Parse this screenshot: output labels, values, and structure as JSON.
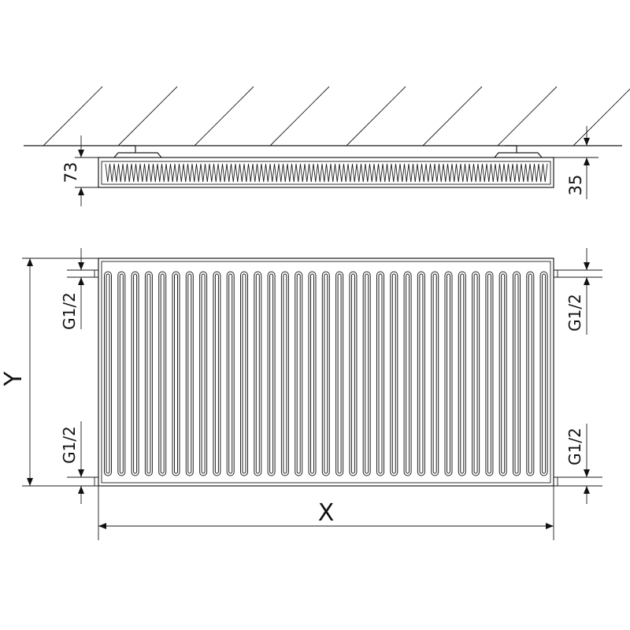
{
  "dimensions": {
    "depth": "73",
    "wall_gap": "35",
    "width": "X",
    "height": "Y",
    "connection_left_top": "G1/2",
    "connection_left_bottom": "G1/2",
    "connection_right_top": "G1/2",
    "connection_right_bottom": "G1/2"
  },
  "line_color": "#1a1a1a"
}
